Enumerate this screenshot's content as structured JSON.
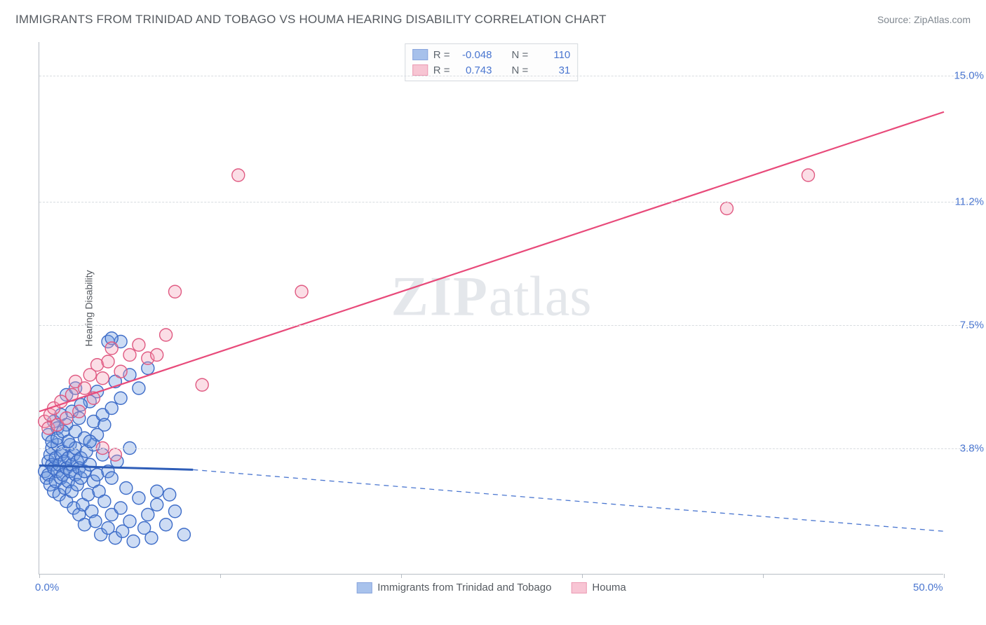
{
  "title": "IMMIGRANTS FROM TRINIDAD AND TOBAGO VS HOUMA HEARING DISABILITY CORRELATION CHART",
  "source_label": "Source: ZipAtlas.com",
  "ylabel": "Hearing Disability",
  "watermark": {
    "part1": "ZIP",
    "part2": "atlas"
  },
  "chart": {
    "type": "scatter",
    "background_color": "#ffffff",
    "grid_color": "#d8dce0",
    "axis_color": "#b8bec5",
    "xlim": [
      0,
      50
    ],
    "ylim": [
      0,
      16
    ],
    "xticks": [
      0,
      10,
      20,
      30,
      40,
      50
    ],
    "xtick_labels": {
      "0": "0.0%",
      "50": "50.0%"
    },
    "ygrid": [
      3.8,
      7.5,
      11.2,
      15.0
    ],
    "ytick_labels": [
      "3.8%",
      "7.5%",
      "11.2%",
      "15.0%"
    ],
    "marker_radius": 9,
    "marker_stroke_width": 1.4,
    "series": [
      {
        "name": "Immigrants from Trinidad and Tobago",
        "r": -0.048,
        "n": 110,
        "fill_color": "#6f9ae0",
        "fill_opacity": 0.35,
        "stroke_color": "#3d6cc8",
        "trend": {
          "solid": {
            "x1": 0,
            "y1": 3.28,
            "x2": 8.5,
            "y2": 3.15,
            "color": "#2e5db8",
            "width": 3
          },
          "dashed": {
            "x1": 8.5,
            "y1": 3.15,
            "x2": 50,
            "y2": 1.3,
            "color": "#4a76d0",
            "width": 1.3
          }
        },
        "points": [
          [
            0.3,
            3.1
          ],
          [
            0.4,
            2.9
          ],
          [
            0.5,
            3.4
          ],
          [
            0.5,
            3.0
          ],
          [
            0.6,
            3.6
          ],
          [
            0.6,
            2.7
          ],
          [
            0.7,
            3.3
          ],
          [
            0.7,
            3.8
          ],
          [
            0.8,
            2.5
          ],
          [
            0.8,
            3.2
          ],
          [
            0.9,
            3.5
          ],
          [
            0.9,
            2.8
          ],
          [
            1.0,
            3.1
          ],
          [
            1.0,
            3.9
          ],
          [
            1.1,
            2.4
          ],
          [
            1.1,
            3.3
          ],
          [
            1.2,
            3.6
          ],
          [
            1.2,
            2.9
          ],
          [
            1.3,
            3.0
          ],
          [
            1.3,
            3.7
          ],
          [
            1.4,
            2.6
          ],
          [
            1.4,
            3.4
          ],
          [
            1.5,
            3.2
          ],
          [
            1.5,
            2.2
          ],
          [
            1.6,
            3.5
          ],
          [
            1.6,
            2.8
          ],
          [
            1.7,
            3.9
          ],
          [
            1.7,
            3.1
          ],
          [
            1.8,
            2.5
          ],
          [
            1.8,
            3.3
          ],
          [
            1.9,
            3.6
          ],
          [
            1.9,
            2.0
          ],
          [
            2.0,
            3.0
          ],
          [
            2.0,
            3.8
          ],
          [
            2.1,
            2.7
          ],
          [
            2.1,
            3.4
          ],
          [
            2.2,
            1.8
          ],
          [
            2.2,
            3.2
          ],
          [
            2.3,
            2.9
          ],
          [
            2.3,
            3.5
          ],
          [
            2.4,
            2.1
          ],
          [
            2.5,
            3.1
          ],
          [
            2.5,
            1.5
          ],
          [
            2.6,
            3.7
          ],
          [
            2.7,
            2.4
          ],
          [
            2.8,
            3.3
          ],
          [
            2.9,
            1.9
          ],
          [
            3.0,
            2.8
          ],
          [
            3.0,
            3.9
          ],
          [
            3.1,
            1.6
          ],
          [
            3.2,
            3.0
          ],
          [
            3.3,
            2.5
          ],
          [
            3.4,
            1.2
          ],
          [
            3.5,
            3.6
          ],
          [
            3.6,
            2.2
          ],
          [
            3.8,
            1.4
          ],
          [
            3.8,
            3.1
          ],
          [
            4.0,
            1.8
          ],
          [
            4.0,
            2.9
          ],
          [
            4.2,
            1.1
          ],
          [
            4.3,
            3.4
          ],
          [
            4.5,
            2.0
          ],
          [
            4.6,
            1.3
          ],
          [
            4.8,
            2.6
          ],
          [
            5.0,
            1.6
          ],
          [
            5.0,
            3.8
          ],
          [
            5.2,
            1.0
          ],
          [
            5.5,
            2.3
          ],
          [
            5.8,
            1.4
          ],
          [
            6.0,
            1.8
          ],
          [
            6.2,
            1.1
          ],
          [
            6.5,
            2.5
          ],
          [
            7.0,
            1.5
          ],
          [
            7.5,
            1.9
          ],
          [
            8.0,
            1.2
          ],
          [
            0.5,
            4.2
          ],
          [
            0.8,
            4.6
          ],
          [
            1.0,
            4.4
          ],
          [
            1.2,
            4.8
          ],
          [
            1.5,
            4.5
          ],
          [
            1.8,
            4.9
          ],
          [
            2.0,
            4.3
          ],
          [
            2.2,
            4.7
          ],
          [
            2.5,
            4.1
          ],
          [
            2.8,
            5.2
          ],
          [
            3.0,
            4.6
          ],
          [
            3.2,
            5.5
          ],
          [
            3.5,
            4.8
          ],
          [
            4.0,
            5.0
          ],
          [
            4.2,
            5.8
          ],
          [
            4.5,
            5.3
          ],
          [
            5.0,
            6.0
          ],
          [
            5.5,
            5.6
          ],
          [
            6.0,
            6.2
          ],
          [
            3.8,
            7.0
          ],
          [
            4.5,
            7.0
          ],
          [
            4.0,
            7.1
          ],
          [
            1.5,
            5.4
          ],
          [
            2.0,
            5.6
          ],
          [
            2.3,
            5.1
          ],
          [
            0.7,
            4.0
          ],
          [
            1.0,
            4.1
          ],
          [
            1.3,
            4.3
          ],
          [
            1.6,
            4.0
          ],
          [
            6.5,
            2.1
          ],
          [
            7.2,
            2.4
          ],
          [
            3.2,
            4.2
          ],
          [
            3.6,
            4.5
          ],
          [
            2.8,
            4.0
          ]
        ]
      },
      {
        "name": "Houma",
        "r": 0.743,
        "n": 31,
        "fill_color": "#f4a0b8",
        "fill_opacity": 0.35,
        "stroke_color": "#e05a82",
        "trend": {
          "solid": {
            "x1": 0,
            "y1": 4.9,
            "x2": 50,
            "y2": 13.9,
            "color": "#e84a7a",
            "width": 2.2
          }
        },
        "points": [
          [
            0.3,
            4.6
          ],
          [
            0.5,
            4.4
          ],
          [
            0.6,
            4.8
          ],
          [
            0.8,
            5.0
          ],
          [
            1.0,
            4.5
          ],
          [
            1.2,
            5.2
          ],
          [
            1.5,
            4.7
          ],
          [
            1.8,
            5.4
          ],
          [
            2.0,
            5.8
          ],
          [
            2.2,
            4.9
          ],
          [
            2.5,
            5.6
          ],
          [
            2.8,
            6.0
          ],
          [
            3.0,
            5.3
          ],
          [
            3.2,
            6.3
          ],
          [
            3.5,
            5.9
          ],
          [
            3.8,
            6.4
          ],
          [
            4.0,
            6.8
          ],
          [
            4.5,
            6.1
          ],
          [
            5.0,
            6.6
          ],
          [
            5.5,
            6.9
          ],
          [
            6.0,
            6.5
          ],
          [
            6.5,
            6.6
          ],
          [
            7.0,
            7.2
          ],
          [
            3.5,
            3.8
          ],
          [
            4.2,
            3.6
          ],
          [
            7.5,
            8.5
          ],
          [
            9.0,
            5.7
          ],
          [
            11.0,
            12.0
          ],
          [
            14.5,
            8.5
          ],
          [
            38.0,
            11.0
          ],
          [
            42.5,
            12.0
          ]
        ]
      }
    ]
  },
  "legend": {
    "r_label": "R =",
    "n_label": "N ="
  },
  "bottom_legend": {
    "series1": "Immigrants from Trinidad and Tobago",
    "series2": "Houma"
  }
}
